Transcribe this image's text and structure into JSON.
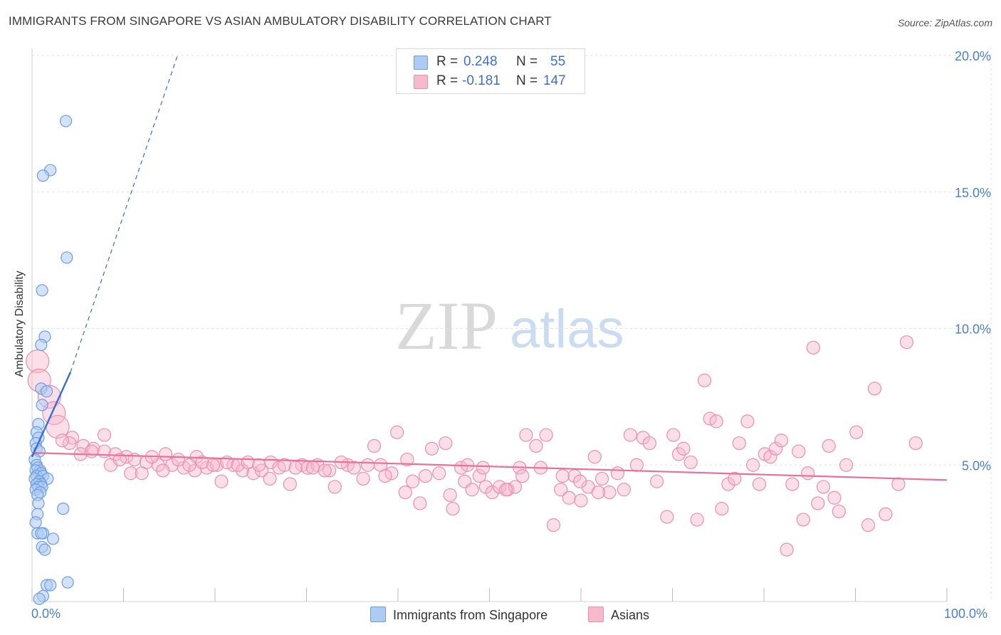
{
  "title": "IMMIGRANTS FROM SINGAPORE VS ASIAN AMBULATORY DISABILITY CORRELATION CHART",
  "source": "Source: ZipAtlas.com",
  "watermark": {
    "zip": "ZIP",
    "atlas": "atlas"
  },
  "legend": {
    "r_label": "R =",
    "n_label": "N =",
    "rows": [
      {
        "r": "0.248",
        "n": "55"
      },
      {
        "r": "-0.181",
        "n": "147"
      }
    ]
  },
  "colors": {
    "blue_fill": "#aecbf2",
    "blue_stroke": "#6b9ee0",
    "blue_line": "#2f6fd6",
    "pink_fill": "#f7b9cc",
    "pink_stroke": "#ea8fac",
    "pink_line": "#e8709a",
    "tick": "#4a7fd0",
    "grid": "#e2e2e2"
  },
  "chart_data": {
    "type": "scatter",
    "title": "IMMIGRANTS FROM SINGAPORE VS ASIAN AMBULATORY DISABILITY CORRELATION CHART",
    "xlabel": "",
    "ylabel": "Ambulatory Disability",
    "xlim": [
      0,
      100
    ],
    "ylim": [
      0,
      20
    ],
    "x_tick_labels": [
      "0.0%",
      "100.0%"
    ],
    "y_tick_labels": [
      "5.0%",
      "10.0%",
      "15.0%",
      "20.0%"
    ],
    "y_ticks": [
      5,
      10,
      15,
      20
    ],
    "grid": true,
    "legend_position": "top-center",
    "series": [
      {
        "name": "Immigrants from Singapore",
        "r": 0.248,
        "n": 55,
        "trend": {
          "x0": 0,
          "y0": 5.3,
          "x1": 4.2,
          "y1": 8.4,
          "dash_to_x": 15.9,
          "dash_to_y": 20.0
        },
        "points": [
          [
            3.7,
            17.6
          ],
          [
            2.0,
            15.8
          ],
          [
            1.2,
            15.6
          ],
          [
            3.8,
            12.6
          ],
          [
            1.1,
            11.4
          ],
          [
            1.4,
            9.7
          ],
          [
            1.0,
            9.4
          ],
          [
            1.0,
            7.8
          ],
          [
            1.6,
            7.7
          ],
          [
            1.1,
            7.2
          ],
          [
            0.7,
            6.5
          ],
          [
            0.5,
            6.2
          ],
          [
            0.7,
            6.0
          ],
          [
            0.4,
            5.8
          ],
          [
            0.5,
            5.6
          ],
          [
            0.8,
            5.5
          ],
          [
            0.3,
            5.2
          ],
          [
            0.5,
            5.0
          ],
          [
            0.6,
            4.9
          ],
          [
            0.9,
            4.8
          ],
          [
            0.4,
            4.8
          ],
          [
            1.0,
            4.7
          ],
          [
            0.5,
            4.6
          ],
          [
            1.2,
            4.6
          ],
          [
            1.7,
            4.5
          ],
          [
            0.3,
            4.5
          ],
          [
            0.8,
            4.4
          ],
          [
            1.0,
            4.3
          ],
          [
            0.5,
            4.3
          ],
          [
            0.7,
            4.2
          ],
          [
            1.1,
            4.2
          ],
          [
            0.4,
            4.1
          ],
          [
            0.9,
            4.0
          ],
          [
            0.6,
            3.9
          ],
          [
            0.7,
            3.6
          ],
          [
            3.4,
            3.4
          ],
          [
            0.6,
            3.2
          ],
          [
            0.4,
            2.9
          ],
          [
            0.6,
            2.5
          ],
          [
            1.2,
            2.5
          ],
          [
            1.0,
            2.5
          ],
          [
            2.3,
            2.3
          ],
          [
            1.1,
            2.0
          ],
          [
            1.4,
            1.9
          ],
          [
            3.9,
            0.7
          ],
          [
            1.6,
            0.6
          ],
          [
            2.0,
            0.6
          ],
          [
            1.2,
            0.2
          ],
          [
            0.8,
            0.1
          ]
        ]
      },
      {
        "name": "Asians",
        "r": -0.181,
        "n": 147,
        "trend": {
          "x0": 0,
          "y0": 5.45,
          "x1": 100,
          "y1": 4.45
        },
        "points": [
          [
            0.6,
            8.8
          ],
          [
            0.8,
            8.1
          ],
          [
            1.9,
            7.5
          ],
          [
            2.4,
            6.9
          ],
          [
            2.8,
            6.4
          ],
          [
            4.4,
            6.0
          ],
          [
            4.1,
            5.8
          ],
          [
            5.6,
            5.7
          ],
          [
            6.7,
            5.6
          ],
          [
            7.9,
            5.5
          ],
          [
            9.1,
            5.4
          ],
          [
            10.3,
            5.3
          ],
          [
            11.2,
            5.2
          ],
          [
            12.5,
            5.1
          ],
          [
            13.8,
            5.0
          ],
          [
            7.9,
            6.1
          ],
          [
            14.6,
            5.4
          ],
          [
            15.3,
            5.0
          ],
          [
            16.6,
            4.9
          ],
          [
            17.8,
            4.8
          ],
          [
            18.0,
            5.3
          ],
          [
            19.1,
            4.9
          ],
          [
            20.2,
            5.0
          ],
          [
            20.7,
            4.4
          ],
          [
            22.0,
            5.0
          ],
          [
            23.0,
            4.8
          ],
          [
            24.2,
            4.7
          ],
          [
            25.1,
            4.8
          ],
          [
            26.1,
            5.1
          ],
          [
            27.0,
            4.9
          ],
          [
            28.2,
            4.3
          ],
          [
            29.5,
            5.0
          ],
          [
            30.1,
            4.9
          ],
          [
            31.2,
            5.0
          ],
          [
            32.5,
            4.8
          ],
          [
            33.1,
            4.2
          ],
          [
            34.5,
            5.0
          ],
          [
            35.2,
            4.9
          ],
          [
            36.2,
            4.5
          ],
          [
            37.4,
            5.7
          ],
          [
            38.1,
            5.0
          ],
          [
            39.3,
            4.7
          ],
          [
            39.9,
            6.2
          ],
          [
            40.8,
            4.0
          ],
          [
            41.6,
            4.4
          ],
          [
            42.4,
            3.6
          ],
          [
            43.7,
            5.6
          ],
          [
            44.5,
            4.7
          ],
          [
            45.2,
            5.8
          ],
          [
            46.0,
            3.4
          ],
          [
            46.9,
            4.9
          ],
          [
            47.3,
            4.4
          ],
          [
            48.1,
            4.1
          ],
          [
            48.9,
            4.6
          ],
          [
            49.6,
            4.2
          ],
          [
            50.3,
            4.0
          ],
          [
            51.1,
            4.2
          ],
          [
            52.0,
            4.1
          ],
          [
            52.8,
            4.2
          ],
          [
            53.3,
            4.9
          ],
          [
            54.0,
            6.1
          ],
          [
            55.1,
            5.7
          ],
          [
            56.2,
            6.1
          ],
          [
            57.0,
            2.8
          ],
          [
            57.8,
            4.1
          ],
          [
            58.7,
            3.8
          ],
          [
            59.3,
            4.6
          ],
          [
            60.0,
            3.7
          ],
          [
            60.8,
            4.2
          ],
          [
            61.5,
            5.3
          ],
          [
            62.3,
            4.5
          ],
          [
            63.1,
            4.0
          ],
          [
            64.0,
            4.7
          ],
          [
            64.7,
            4.1
          ],
          [
            65.4,
            6.1
          ],
          [
            66.1,
            5.0
          ],
          [
            66.8,
            6.0
          ],
          [
            67.5,
            5.8
          ],
          [
            68.3,
            4.4
          ],
          [
            69.4,
            3.1
          ],
          [
            70.1,
            6.1
          ],
          [
            70.7,
            5.4
          ],
          [
            71.2,
            5.6
          ],
          [
            72.0,
            5.1
          ],
          [
            72.7,
            3.0
          ],
          [
            73.5,
            8.1
          ],
          [
            74.1,
            6.7
          ],
          [
            74.8,
            6.6
          ],
          [
            75.4,
            3.4
          ],
          [
            76.1,
            4.3
          ],
          [
            76.8,
            4.5
          ],
          [
            77.3,
            5.8
          ],
          [
            78.2,
            6.6
          ],
          [
            78.8,
            5.0
          ],
          [
            79.5,
            4.3
          ],
          [
            80.1,
            5.4
          ],
          [
            80.7,
            5.3
          ],
          [
            81.3,
            5.6
          ],
          [
            81.9,
            5.9
          ],
          [
            82.5,
            1.9
          ],
          [
            83.1,
            4.3
          ],
          [
            83.8,
            5.5
          ],
          [
            84.3,
            3.0
          ],
          [
            84.8,
            4.7
          ],
          [
            85.4,
            9.3
          ],
          [
            85.9,
            3.6
          ],
          [
            86.5,
            4.2
          ],
          [
            87.1,
            5.7
          ],
          [
            87.7,
            3.8
          ],
          [
            88.2,
            3.3
          ],
          [
            89.0,
            5.0
          ],
          [
            90.1,
            6.2
          ],
          [
            91.4,
            2.8
          ],
          [
            92.1,
            7.8
          ],
          [
            93.3,
            3.2
          ],
          [
            94.7,
            4.3
          ],
          [
            95.6,
            9.5
          ],
          [
            96.6,
            5.8
          ],
          [
            3.3,
            5.9
          ],
          [
            5.3,
            5.4
          ],
          [
            6.5,
            5.5
          ],
          [
            8.6,
            5.0
          ],
          [
            9.6,
            5.2
          ],
          [
            10.8,
            4.7
          ],
          [
            12.0,
            4.7
          ],
          [
            13.1,
            5.3
          ],
          [
            14.3,
            4.8
          ],
          [
            16.0,
            5.2
          ],
          [
            17.2,
            5.0
          ],
          [
            18.6,
            5.1
          ],
          [
            19.8,
            5.0
          ],
          [
            21.3,
            5.1
          ],
          [
            22.5,
            5.0
          ],
          [
            23.6,
            5.1
          ],
          [
            24.8,
            5.0
          ],
          [
            26.0,
            4.5
          ],
          [
            27.6,
            5.0
          ],
          [
            28.8,
            4.9
          ],
          [
            30.7,
            4.9
          ],
          [
            32.0,
            4.8
          ],
          [
            33.8,
            5.1
          ],
          [
            36.7,
            5.0
          ],
          [
            38.6,
            4.6
          ],
          [
            41.0,
            5.2
          ],
          [
            43.0,
            4.6
          ],
          [
            45.7,
            3.9
          ],
          [
            47.6,
            5.0
          ],
          [
            49.3,
            4.9
          ],
          [
            51.8,
            4.1
          ],
          [
            53.6,
            4.6
          ],
          [
            55.6,
            4.9
          ],
          [
            58.0,
            4.6
          ],
          [
            59.9,
            4.4
          ],
          [
            61.9,
            4.0
          ]
        ]
      }
    ]
  }
}
